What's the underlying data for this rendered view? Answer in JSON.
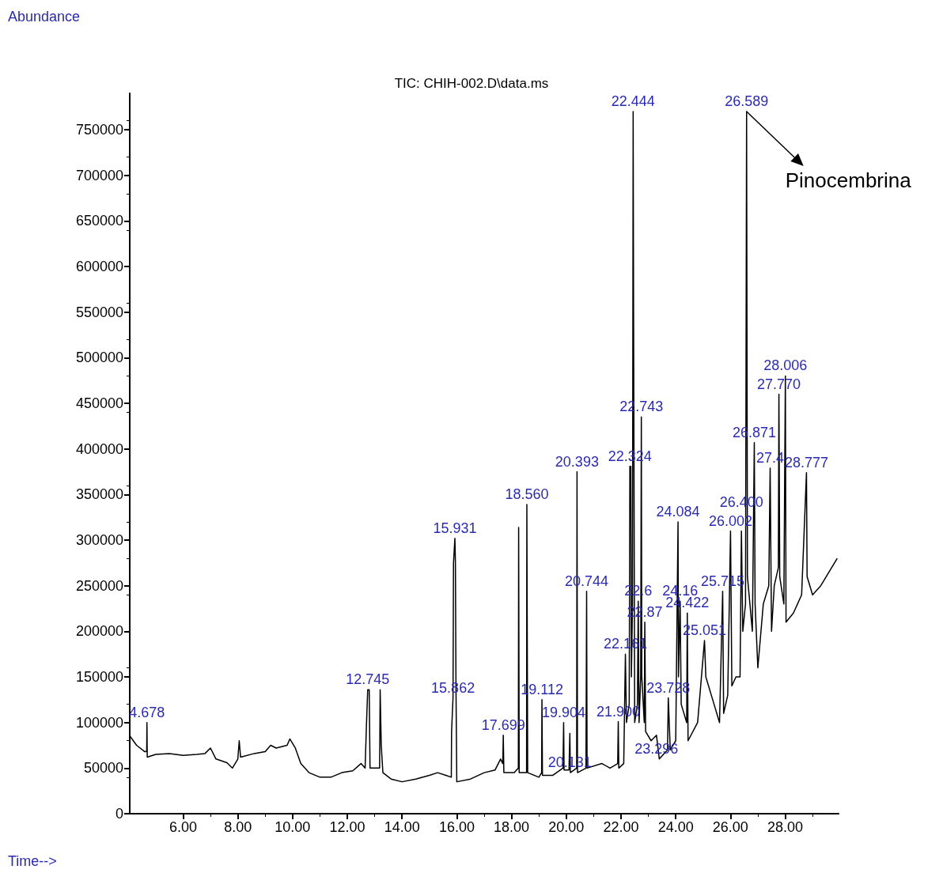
{
  "chart_data": {
    "type": "line",
    "title": "TIC: CHIH-002.D\\data.ms",
    "xlabel": "Time-->",
    "ylabel": "Abundance",
    "xlim": [
      4.05,
      29.95
    ],
    "ylim": [
      0,
      790000
    ],
    "xticks": [
      {
        "value": 6,
        "label": "6.00"
      },
      {
        "value": 8,
        "label": "8.00"
      },
      {
        "value": 10,
        "label": "10.00"
      },
      {
        "value": 12,
        "label": "12.00"
      },
      {
        "value": 14,
        "label": "14.00"
      },
      {
        "value": 16,
        "label": "16.00"
      },
      {
        "value": 18,
        "label": "18.00"
      },
      {
        "value": 20,
        "label": "20.00"
      },
      {
        "value": 22,
        "label": "22.00"
      },
      {
        "value": 24,
        "label": "24.00"
      },
      {
        "value": 26,
        "label": "26.00"
      },
      {
        "value": 28,
        "label": "28.00"
      }
    ],
    "yticks": [
      0,
      50000,
      100000,
      150000,
      200000,
      250000,
      300000,
      350000,
      400000,
      450000,
      500000,
      550000,
      600000,
      650000,
      700000,
      750000
    ],
    "grid": false,
    "marker": "none",
    "line_style": "solid",
    "series": [
      {
        "color": "#000000",
        "x": [
          4.06,
          4.3,
          4.6,
          4.67,
          4.678,
          4.69,
          5,
          5.5,
          6,
          6.5,
          6.8,
          7.0,
          7.2,
          7.6,
          7.8,
          8.0,
          8.05,
          8.1,
          8.6,
          9.0,
          9.2,
          9.4,
          9.8,
          9.9,
          10.1,
          10.3,
          10.6,
          11,
          11.4,
          11.8,
          12.2,
          12.5,
          12.65,
          12.7,
          12.745,
          12.8,
          12.83,
          13.18,
          13.2,
          13.24,
          13.3,
          13.6,
          14,
          14.5,
          15,
          15.3,
          15.6,
          15.8,
          15.81,
          15.862,
          15.88,
          15.931,
          15.95,
          15.97,
          16.0,
          16.5,
          17,
          17.4,
          17.6,
          17.68,
          17.699,
          17.72,
          18.1,
          18.25,
          18.26,
          18.28,
          18.55,
          18.56,
          18.59,
          19.0,
          19.1,
          19.112,
          19.13,
          19.5,
          19.88,
          19.904,
          19.92,
          20.1,
          20.131,
          20.15,
          20.38,
          20.393,
          20.41,
          20.72,
          20.744,
          20.76,
          21.3,
          21.6,
          21.88,
          21.9,
          21.92,
          22.1,
          22.161,
          22.2,
          22.3,
          22.324,
          22.36,
          22.38,
          22.42,
          22.444,
          22.46,
          22.5,
          22.6,
          22.63,
          22.66,
          22.72,
          22.743,
          22.76,
          22.85,
          22.87,
          22.9,
          23.1,
          23.296,
          23.4,
          23.7,
          23.728,
          23.8,
          24.0,
          24.084,
          24.1,
          24.16,
          24.2,
          24.4,
          24.422,
          24.45,
          24.8,
          25.051,
          25.1,
          25.4,
          25.6,
          25.715,
          25.75,
          25.9,
          26.002,
          26.05,
          26.2,
          26.35,
          26.4,
          26.45,
          26.55,
          26.589,
          26.62,
          26.8,
          26.871,
          26.9,
          27.0,
          27.2,
          27.4,
          27.45,
          27.5,
          27.6,
          27.75,
          27.77,
          27.8,
          27.95,
          28.006,
          28.03,
          28.3,
          28.6,
          28.777,
          28.8,
          29.0,
          29.3,
          29.5,
          29.7,
          29.9
        ],
        "values": [
          85000,
          75000,
          68000,
          68000,
          100000,
          62000,
          65000,
          66000,
          64000,
          65000,
          66000,
          72000,
          60000,
          56000,
          50000,
          60000,
          80000,
          62000,
          66000,
          68000,
          75000,
          72000,
          75000,
          82000,
          72000,
          55000,
          45000,
          40000,
          40000,
          45000,
          47000,
          55000,
          50000,
          98000,
          136000,
          136000,
          50000,
          50000,
          136000,
          75000,
          45000,
          38000,
          35000,
          38000,
          42000,
          45000,
          42000,
          40000,
          90000,
          127000,
          275000,
          302000,
          275000,
          140000,
          35000,
          38000,
          45000,
          48000,
          60000,
          55000,
          86000,
          45000,
          45000,
          50000,
          314000,
          45000,
          45000,
          339000,
          45000,
          40000,
          45000,
          125000,
          42000,
          42000,
          50000,
          100000,
          48000,
          48000,
          88000,
          45000,
          50000,
          375000,
          45000,
          50000,
          244000,
          50000,
          55000,
          50000,
          55000,
          101000,
          50000,
          55000,
          175000,
          100000,
          120000,
          381000,
          381000,
          150000,
          230000,
          770000,
          550000,
          100000,
          120000,
          233000,
          100000,
          150000,
          435000,
          150000,
          100000,
          210000,
          90000,
          80000,
          86000,
          60000,
          70000,
          127000,
          70000,
          80000,
          320000,
          150000,
          233000,
          120000,
          100000,
          220000,
          80000,
          100000,
          190000,
          150000,
          120000,
          100000,
          244000,
          110000,
          130000,
          310000,
          140000,
          150000,
          150000,
          310000,
          200000,
          230000,
          770000,
          260000,
          200000,
          407000,
          230000,
          160000,
          230000,
          250000,
          379000,
          200000,
          250000,
          270000,
          460000,
          260000,
          230000,
          480000,
          210000,
          220000,
          240000,
          374000,
          260000,
          240000,
          250000,
          260000,
          270000,
          280000
        ]
      }
    ],
    "annotations": [
      {
        "text": "4.678",
        "x": 4.678,
        "y": 100000
      },
      {
        "text": "12.745",
        "x": 12.745,
        "y": 136000
      },
      {
        "text": "15.862",
        "x": 15.862,
        "y": 127000
      },
      {
        "text": "15.931",
        "x": 15.931,
        "y": 302000
      },
      {
        "text": "17.699",
        "x": 17.699,
        "y": 86000
      },
      {
        "text": "18.560",
        "x": 18.56,
        "y": 339000
      },
      {
        "text": "19.112",
        "x": 19.112,
        "y": 125000
      },
      {
        "text": "19.904",
        "x": 19.904,
        "y": 100000
      },
      {
        "text": "20.131",
        "x": 20.131,
        "y": 45000
      },
      {
        "text": "20.393",
        "x": 20.393,
        "y": 375000
      },
      {
        "text": "20.744",
        "x": 20.744,
        "y": 244000
      },
      {
        "text": "21.900",
        "x": 21.9,
        "y": 101000
      },
      {
        "text": "22.161",
        "x": 22.161,
        "y": 175000
      },
      {
        "text": "22.324",
        "x": 22.324,
        "y": 381000
      },
      {
        "text": "22.444",
        "x": 22.444,
        "y": 770000
      },
      {
        "text": "22.6",
        "x": 22.63,
        "y": 233000
      },
      {
        "text": "22.743",
        "x": 22.743,
        "y": 435000
      },
      {
        "text": "22.87",
        "x": 22.87,
        "y": 210000
      },
      {
        "text": "23.296",
        "x": 23.296,
        "y": 60000
      },
      {
        "text": "23.728",
        "x": 23.728,
        "y": 127000
      },
      {
        "text": "24.084",
        "x": 24.084,
        "y": 320000
      },
      {
        "text": "24.16",
        "x": 24.16,
        "y": 233000
      },
      {
        "text": "24.422",
        "x": 24.422,
        "y": 220000
      },
      {
        "text": "25.051",
        "x": 25.051,
        "y": 190000
      },
      {
        "text": "25.715",
        "x": 25.715,
        "y": 244000
      },
      {
        "text": "26.002",
        "x": 26.002,
        "y": 310000
      },
      {
        "text": "26.400",
        "x": 26.4,
        "y": 330000
      },
      {
        "text": "26.589",
        "x": 26.589,
        "y": 770000
      },
      {
        "text": "26.871",
        "x": 26.871,
        "y": 407000
      },
      {
        "text": "27.4",
        "x": 27.45,
        "y": 379000
      },
      {
        "text": "27.770",
        "x": 27.77,
        "y": 460000
      },
      {
        "text": "28.006",
        "x": 28.006,
        "y": 480000
      },
      {
        "text": "28.777",
        "x": 28.777,
        "y": 374000
      },
      {
        "text": "Pinocembrina",
        "x": 26.589,
        "y": 770000
      }
    ]
  }
}
